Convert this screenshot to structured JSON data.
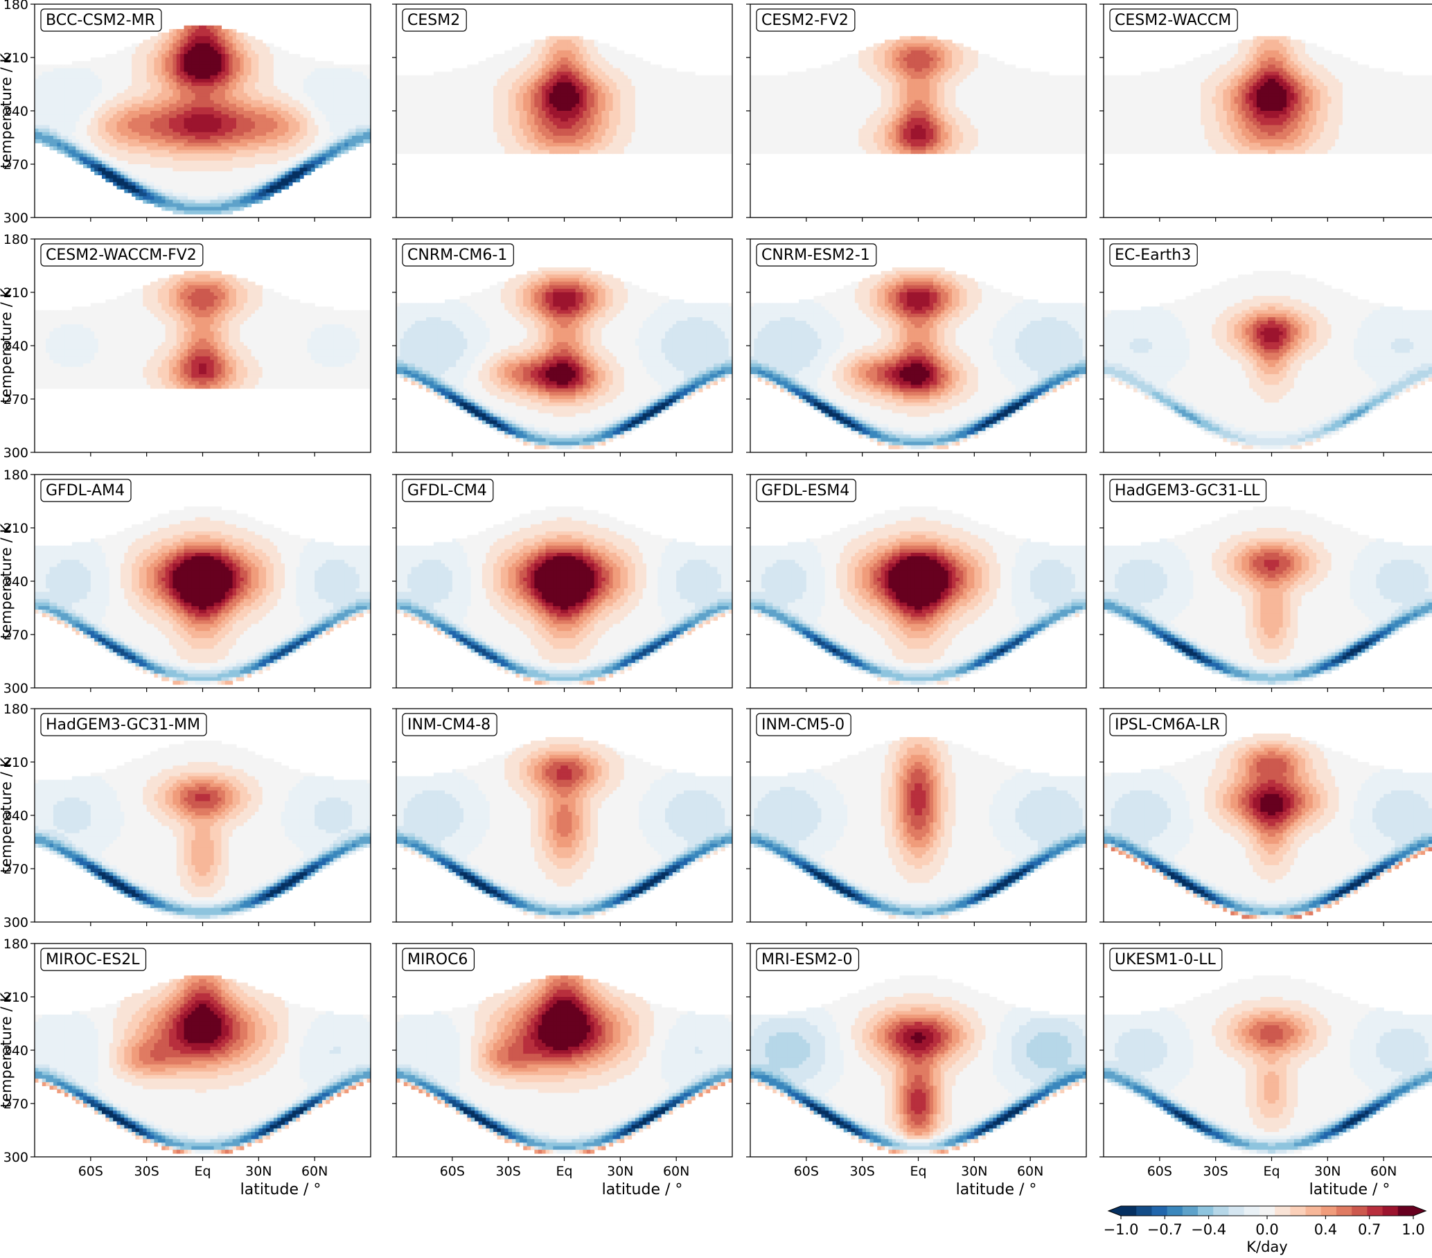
{
  "chart_data": {
    "type": "heatmap",
    "panels": [
      {
        "title": "BCC-CSM2-MR",
        "blobs": [
          [
            0,
            195,
            0.6,
            "v",
            0.45
          ],
          [
            0,
            215,
            0.7,
            "c",
            0.4
          ],
          [
            0,
            248,
            0.75,
            "c",
            0.45
          ],
          [
            -40,
            248,
            0.4,
            "c",
            0.4
          ],
          [
            40,
            248,
            0.4,
            "c",
            0.4
          ]
        ],
        "side": 0.4,
        "band": 1.0,
        "bandRed": 0.0,
        "tmin": 192
      },
      {
        "title": "CESM2",
        "blobs": [
          [
            0,
            215,
            0.4,
            "v",
            0.35
          ],
          [
            0,
            232,
            0.7,
            "c",
            0.4
          ],
          [
            0,
            252,
            0.5,
            "c",
            0.4
          ]
        ],
        "side": 0.08,
        "band": 0.0,
        "bandRed": 0.0,
        "cutoff": 263,
        "tmin": 198
      },
      {
        "title": "CESM2-FV2",
        "blobs": [
          [
            0,
            210,
            0.55,
            "c",
            0.35
          ],
          [
            0,
            240,
            0.45,
            "v",
            0.35
          ],
          [
            0,
            255,
            0.5,
            "c",
            0.35
          ]
        ],
        "side": 0.0,
        "band": 0.0,
        "bandRed": 0.0,
        "cutoff": 263,
        "tmin": 198
      },
      {
        "title": "CESM2-WACCM",
        "blobs": [
          [
            0,
            215,
            0.4,
            "v",
            0.35
          ],
          [
            0,
            232,
            0.75,
            "c",
            0.4
          ],
          [
            0,
            252,
            0.45,
            "c",
            0.4
          ]
        ],
        "side": 0.1,
        "band": 0.0,
        "bandRed": 0.0,
        "cutoff": 263,
        "tmin": 198
      },
      {
        "title": "CESM2-WACCM-FV2",
        "blobs": [
          [
            0,
            212,
            0.55,
            "c",
            0.35
          ],
          [
            0,
            240,
            0.4,
            "v",
            0.35
          ],
          [
            0,
            255,
            0.5,
            "c",
            0.35
          ]
        ],
        "side": 0.15,
        "band": 0.0,
        "bandRed": 0.0,
        "cutoff": 263,
        "tmin": 198
      },
      {
        "title": "CNRM-CM6-1",
        "blobs": [
          [
            0,
            213,
            0.75,
            "c",
            0.35
          ],
          [
            0,
            240,
            0.4,
            "v",
            0.35
          ],
          [
            0,
            258,
            0.7,
            "c",
            0.35
          ],
          [
            -25,
            255,
            0.35,
            "c",
            0.3
          ]
        ],
        "side": 0.55,
        "band": 1.0,
        "bandRed": 0.6,
        "tmin": 195
      },
      {
        "title": "CNRM-ESM2-1",
        "blobs": [
          [
            0,
            213,
            0.75,
            "c",
            0.35
          ],
          [
            0,
            240,
            0.4,
            "v",
            0.35
          ],
          [
            0,
            258,
            0.7,
            "c",
            0.35
          ],
          [
            -25,
            255,
            0.35,
            "c",
            0.3
          ]
        ],
        "side": 0.55,
        "band": 1.0,
        "bandRed": 0.6,
        "tmin": 195
      },
      {
        "title": "EC-Earth3",
        "blobs": [
          [
            0,
            232,
            0.6,
            "c",
            0.35
          ],
          [
            0,
            245,
            0.35,
            "v",
            0.3
          ]
        ],
        "side": 0.35,
        "band": 0.5,
        "bandRed": 0.3,
        "tmin": 198
      },
      {
        "title": "GFDL-AM4",
        "blobs": [
          [
            0,
            238,
            1.0,
            "c",
            0.5
          ],
          [
            0,
            250,
            0.5,
            "v",
            0.4
          ]
        ],
        "side": 0.45,
        "band": 0.85,
        "bandRed": 0.6,
        "tmin": 198
      },
      {
        "title": "GFDL-CM4",
        "blobs": [
          [
            0,
            238,
            1.0,
            "c",
            0.5
          ],
          [
            0,
            250,
            0.5,
            "v",
            0.4
          ]
        ],
        "side": 0.45,
        "band": 0.85,
        "bandRed": 0.6,
        "tmin": 198
      },
      {
        "title": "GFDL-ESM4",
        "blobs": [
          [
            0,
            238,
            1.0,
            "c",
            0.5
          ],
          [
            0,
            250,
            0.5,
            "v",
            0.4
          ]
        ],
        "side": 0.45,
        "band": 0.85,
        "bandRed": 0.4,
        "tmin": 198
      },
      {
        "title": "HadGEM3-GC31-LL",
        "blobs": [
          [
            0,
            230,
            0.65,
            "c",
            0.35
          ],
          [
            0,
            260,
            0.35,
            "v",
            0.3
          ]
        ],
        "side": 0.45,
        "band": 0.95,
        "bandRed": 0.3,
        "tmin": 198
      },
      {
        "title": "HadGEM3-GC31-MM",
        "blobs": [
          [
            0,
            230,
            0.65,
            "c",
            0.35
          ],
          [
            0,
            262,
            0.35,
            "v",
            0.3
          ]
        ],
        "side": 0.4,
        "band": 1.0,
        "bandRed": 0.3,
        "tmin": 198
      },
      {
        "title": "INM-CM4-8",
        "blobs": [
          [
            0,
            215,
            0.6,
            "c",
            0.35
          ],
          [
            0,
            245,
            0.5,
            "v",
            0.35
          ]
        ],
        "side": 0.5,
        "band": 1.0,
        "bandRed": 0.5,
        "tmin": 196
      },
      {
        "title": "INM-CM5-0",
        "blobs": [
          [
            0,
            220,
            0.5,
            "v",
            0.35
          ],
          [
            0,
            245,
            0.45,
            "v",
            0.35
          ]
        ],
        "side": 0.55,
        "band": 1.0,
        "bandRed": 0.4,
        "tmin": 196
      },
      {
        "title": "IPSL-CM6A-LR",
        "blobs": [
          [
            0,
            232,
            0.8,
            "c",
            0.4
          ],
          [
            0,
            210,
            0.55,
            "c",
            0.3
          ],
          [
            0,
            250,
            0.35,
            "v",
            0.3
          ]
        ],
        "side": 0.5,
        "band": 1.0,
        "bandRed": 0.9,
        "tmin": 194
      },
      {
        "title": "MIROC-ES2L",
        "blobs": [
          [
            0,
            230,
            0.75,
            "c",
            0.55
          ],
          [
            -30,
            245,
            0.35,
            "c",
            0.3
          ],
          [
            0,
            212,
            0.45,
            "v",
            0.4
          ]
        ],
        "side": 0.35,
        "band": 1.0,
        "bandRed": 0.85,
        "tmin": 198
      },
      {
        "title": "MIROC6",
        "blobs": [
          [
            0,
            230,
            0.85,
            "c",
            0.55
          ],
          [
            -30,
            245,
            0.35,
            "c",
            0.3
          ],
          [
            0,
            212,
            0.5,
            "v",
            0.4
          ]
        ],
        "side": 0.35,
        "band": 1.0,
        "bandRed": 0.85,
        "tmin": 198
      },
      {
        "title": "MRI-ESM2-0",
        "blobs": [
          [
            0,
            232,
            0.8,
            "c",
            0.4
          ],
          [
            0,
            262,
            0.4,
            "v",
            0.35
          ],
          [
            0,
            275,
            0.4,
            "v",
            0.3
          ]
        ],
        "side": 0.7,
        "band": 1.0,
        "bandRed": 0.7,
        "tmin": 198
      },
      {
        "title": "UKESM1-0-LL",
        "blobs": [
          [
            0,
            230,
            0.6,
            "c",
            0.35
          ],
          [
            0,
            262,
            0.3,
            "v",
            0.3
          ]
        ],
        "side": 0.45,
        "band": 0.95,
        "bandRed": 0.3,
        "tmin": 198
      }
    ],
    "x": {
      "label": "latitude / °",
      "ticks": [
        "60S",
        "30S",
        "Eq",
        "30N",
        "60N"
      ],
      "tick_values": [
        -60,
        -30,
        0,
        30,
        60
      ],
      "range": [
        -90,
        90
      ]
    },
    "y": {
      "label": "temperature / K",
      "ticks": [
        "180",
        "210",
        "240",
        "270",
        "300"
      ],
      "tick_values": [
        180,
        210,
        240,
        270,
        300
      ],
      "range": [
        180,
        300
      ],
      "inverted": true
    },
    "colorbar": {
      "label": "K/day",
      "ticks": [
        "−1.0",
        "−0.7",
        "−0.4",
        "0.0",
        "0.4",
        "0.7",
        "1.0"
      ],
      "tick_values": [
        -1.0,
        -0.7,
        -0.4,
        0.0,
        0.4,
        0.7,
        1.0
      ],
      "range": [
        -1.0,
        1.0
      ],
      "colormap": "RdBu_r",
      "extend": "both"
    },
    "colors": {
      "neg": [
        "#053061",
        "#134c87",
        "#2166ac",
        "#3a87bd",
        "#5ea2ca",
        "#8ec4de",
        "#b6d7e8",
        "#d5e6f1",
        "#e9f1f6"
      ],
      "neutral": "#f4f4f4",
      "pos": [
        "#f9e3d6",
        "#fbd0b9",
        "#f7b799",
        "#f09c7b",
        "#e07b62",
        "#cd594e",
        "#b82f3d",
        "#9c142e",
        "#67001f"
      ]
    }
  }
}
